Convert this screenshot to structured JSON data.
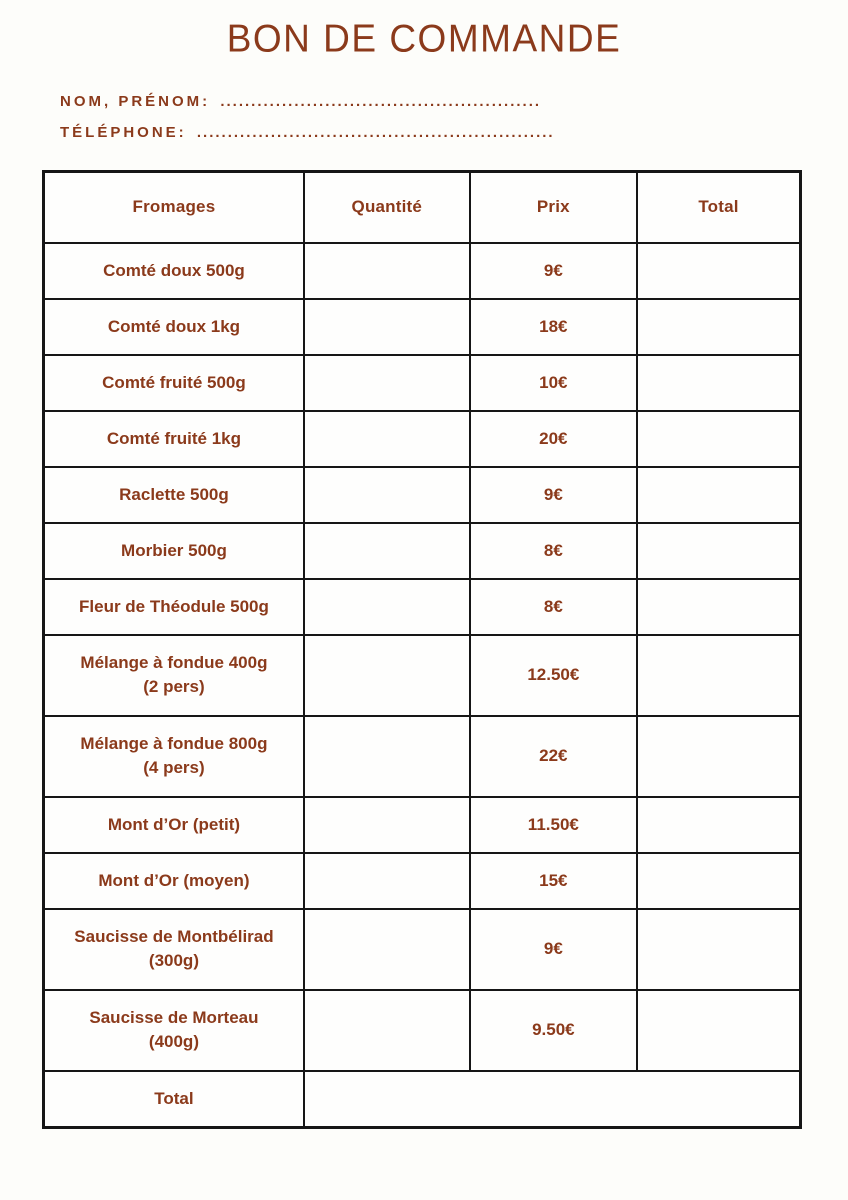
{
  "header": {
    "title": "BON DE COMMANDE",
    "fields": [
      {
        "label": "NOM, PRÉNOM:",
        "dots": "....................................................",
        "value": ""
      },
      {
        "label": "TÉLÉPHONE:",
        "dots": "..........................................................",
        "value": ""
      }
    ]
  },
  "table": {
    "headers": [
      "Fromages",
      "Quantité",
      "Prix",
      "Total"
    ],
    "rows": [
      {
        "name": "Comté doux 500g",
        "name2": "",
        "quantity": "",
        "price": "9€",
        "total": ""
      },
      {
        "name": "Comté doux 1kg",
        "name2": "",
        "quantity": "",
        "price": "18€",
        "total": ""
      },
      {
        "name": "Comté fruité 500g",
        "name2": "",
        "quantity": "",
        "price": "10€",
        "total": ""
      },
      {
        "name": "Comté fruité 1kg",
        "name2": "",
        "quantity": "",
        "price": "20€",
        "total": ""
      },
      {
        "name": "Raclette 500g",
        "name2": "",
        "quantity": "",
        "price": "9€",
        "total": ""
      },
      {
        "name": "Morbier 500g",
        "name2": "",
        "quantity": "",
        "price": "8€",
        "total": ""
      },
      {
        "name": "Fleur de Théodule 500g",
        "name2": "",
        "quantity": "",
        "price": "8€",
        "total": ""
      },
      {
        "name": "Mélange à fondue 400g",
        "name2": "(2 pers)",
        "quantity": "",
        "price": "12.50€",
        "total": ""
      },
      {
        "name": "Mélange à fondue 800g",
        "name2": "(4 pers)",
        "quantity": "",
        "price": "22€",
        "total": ""
      },
      {
        "name": "Mont d’Or (petit)",
        "name2": "",
        "quantity": "",
        "price": "11.50€",
        "total": ""
      },
      {
        "name": "Mont d’Or (moyen)",
        "name2": "",
        "quantity": "",
        "price": "15€",
        "total": ""
      },
      {
        "name": "Saucisse de Montbélirad",
        "name2": "(300g)",
        "quantity": "",
        "price": "9€",
        "total": ""
      },
      {
        "name": "Saucisse de Morteau",
        "name2": "(400g)",
        "quantity": "",
        "price": "9.50€",
        "total": ""
      }
    ],
    "footer": {
      "label": "Total",
      "value": ""
    }
  },
  "colors": {
    "accent_brown": "#8B3A1B",
    "table_border": "#161616",
    "page_background": "#FDFDFA"
  }
}
